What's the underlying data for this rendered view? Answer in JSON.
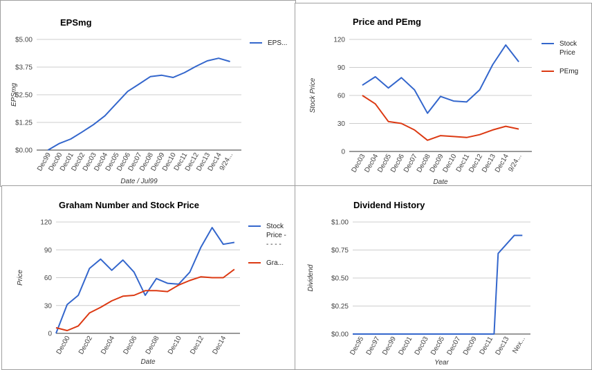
{
  "colors": {
    "blue": "#3366cc",
    "red": "#dc3912"
  },
  "chart_data": [
    {
      "type": "line",
      "title": "EPSmg",
      "xlabel": "Date / Jul99",
      "ylabel": "EPSmg",
      "ylim": [
        0,
        5
      ],
      "yticks": [
        "$0.00",
        "$1.25",
        "$2.50",
        "$3.75",
        "$5.00"
      ],
      "categories": [
        "Dec99",
        "Dec00",
        "Dec01",
        "Dec02",
        "Dec03",
        "Dec04",
        "Dec05",
        "Dec06",
        "Dec07",
        "Dec08",
        "Dec09",
        "Dec10",
        "Dec11",
        "Dec12",
        "Dec13",
        "Dec14",
        "9/24..."
      ],
      "x": [
        1,
        2,
        3,
        4,
        5,
        6,
        7,
        8,
        9,
        10,
        11,
        12,
        13,
        14,
        15,
        16,
        17
      ],
      "xlim": [
        0,
        18
      ],
      "series": [
        {
          "name": "EPS...",
          "color": "#3366cc",
          "x": [
            1,
            2,
            3,
            4,
            5,
            6,
            7,
            8,
            9,
            10,
            11,
            12,
            13,
            14,
            15,
            16,
            17
          ],
          "values": [
            0.0,
            0.3,
            0.5,
            0.82,
            1.15,
            1.55,
            2.1,
            2.65,
            2.98,
            3.32,
            3.38,
            3.28,
            3.5,
            3.78,
            4.03,
            4.15,
            4.0
          ]
        }
      ],
      "legend": "right"
    },
    {
      "type": "line",
      "title": "Price and PEmg",
      "xlabel": "Date",
      "ylabel": "Stock Price",
      "ylim": [
        0,
        120
      ],
      "yticks": [
        "0",
        "30",
        "60",
        "90",
        "120"
      ],
      "categories": [
        "Dec03",
        "Dec04",
        "Dec05",
        "Dec06",
        "Dec07",
        "Dec08",
        "Dec09",
        "Dec10",
        "Dec11",
        "Dec12",
        "Dec13",
        "Dec14",
        "9/24..."
      ],
      "x": [
        1,
        2,
        3,
        4,
        5,
        6,
        7,
        8,
        9,
        10,
        11,
        12,
        13
      ],
      "xlim": [
        0,
        14
      ],
      "series": [
        {
          "name": "Stock Price",
          "color": "#3366cc",
          "x": [
            1,
            2,
            3,
            4,
            5,
            6,
            7,
            8,
            9,
            10,
            11,
            12,
            13
          ],
          "values": [
            71,
            80,
            68,
            79,
            66,
            41,
            59,
            54,
            53,
            66,
            93,
            114,
            96
          ]
        },
        {
          "name": "PEmg",
          "color": "#dc3912",
          "x": [
            1,
            2,
            3,
            4,
            5,
            6,
            7,
            8,
            9,
            10,
            11,
            12,
            13
          ],
          "values": [
            60,
            51,
            32,
            30,
            23,
            12,
            17,
            16,
            15,
            18,
            23,
            27,
            24
          ]
        }
      ],
      "legend": "right"
    },
    {
      "type": "line",
      "title": "Graham Number and Stock Price",
      "xlabel": "Date",
      "ylabel": "Price",
      "ylim": [
        0,
        120
      ],
      "yticks": [
        "0",
        "30",
        "60",
        "90",
        "120"
      ],
      "categories": [
        "Dec00",
        "Dec02",
        "Dec04",
        "Dec06",
        "Dec08",
        "Dec10",
        "Dec12",
        "Dec14"
      ],
      "x": [
        1,
        3,
        5,
        7,
        9,
        11,
        13,
        15
      ],
      "xlim": [
        0,
        16.5
      ],
      "series": [
        {
          "name": "Stock Price - - - - -",
          "color": "#3366cc",
          "x": [
            0,
            1,
            2,
            3,
            4,
            5,
            6,
            7,
            8,
            9,
            10,
            11,
            12,
            13,
            14,
            15,
            16
          ],
          "values": [
            0,
            31,
            41,
            70,
            80,
            68,
            79,
            66,
            41,
            59,
            54,
            53,
            66,
            93,
            114,
            96,
            98
          ]
        },
        {
          "name": "Gra...",
          "color": "#dc3912",
          "x": [
            0,
            1,
            2,
            3,
            4,
            5,
            6,
            7,
            8,
            9,
            10,
            11,
            12,
            13,
            14,
            15,
            16
          ],
          "values": [
            6,
            3,
            8,
            22,
            28,
            35,
            40,
            41,
            46,
            46,
            45,
            52,
            57,
            61,
            60,
            60,
            69
          ]
        }
      ],
      "legend": "right"
    },
    {
      "type": "line",
      "title": "Dividend History",
      "xlabel": "Year",
      "ylabel": "Dividend",
      "ylim": [
        0,
        1
      ],
      "yticks": [
        "$0.00",
        "$0.25",
        "$0.50",
        "$0.75",
        "$1.00"
      ],
      "categories": [
        "Dec95",
        "Dec97",
        "Dec99",
        "Dec01",
        "Dec03",
        "Dec05",
        "Dec07",
        "Dec09",
        "Dec11",
        "Dec13",
        "Nex..."
      ],
      "x": [
        1,
        3,
        5,
        7,
        9,
        11,
        13,
        15,
        17,
        19,
        21
      ],
      "xlim": [
        0,
        22
      ],
      "series": [
        {
          "name": "",
          "color": "#3366cc",
          "x": [
            0,
            17.5,
            18,
            20,
            21
          ],
          "values": [
            0,
            0,
            0.72,
            0.88,
            0.88
          ]
        }
      ],
      "legend": "none"
    }
  ]
}
